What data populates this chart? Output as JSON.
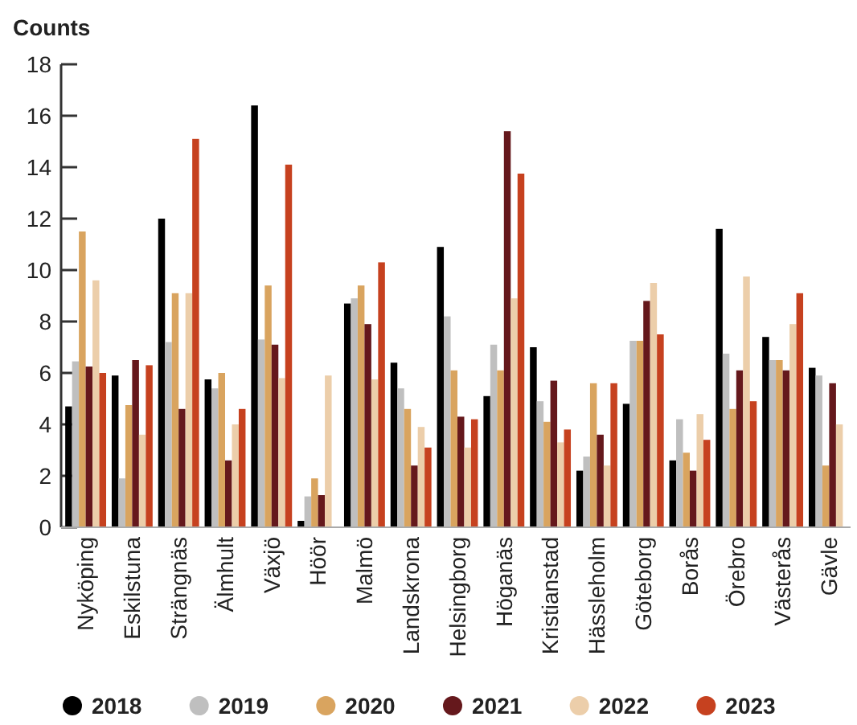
{
  "chart_data": {
    "type": "bar",
    "ylabel": "Counts",
    "categories": [
      "Nyköping",
      "Eskilstuna",
      "Strängnäs",
      "Älmhult",
      "Växjö",
      "Höör",
      "Malmö",
      "Landskrona",
      "Helsingborg",
      "Höganäs",
      "Kristianstad",
      "Hässleholm",
      "Göteborg",
      "Borås",
      "Örebro",
      "Västerås",
      "Gävle"
    ],
    "series": [
      {
        "name": "2018",
        "color": "#000000",
        "values": [
          4.7,
          5.9,
          12.0,
          5.75,
          16.4,
          0.25,
          8.7,
          6.4,
          10.9,
          5.1,
          7.0,
          2.2,
          4.8,
          2.6,
          11.6,
          7.4,
          6.2
        ]
      },
      {
        "name": "2019",
        "color": "#bfbfbf",
        "values": [
          6.45,
          1.9,
          7.2,
          5.4,
          7.3,
          1.2,
          8.9,
          5.4,
          8.2,
          7.1,
          4.9,
          2.75,
          7.25,
          4.2,
          6.75,
          6.5,
          5.9
        ]
      },
      {
        "name": "2020",
        "color": "#d9a45f",
        "values": [
          11.5,
          4.75,
          9.1,
          6.0,
          9.4,
          1.9,
          9.4,
          4.6,
          6.1,
          6.1,
          4.1,
          5.6,
          7.25,
          2.9,
          4.6,
          6.5,
          2.4
        ]
      },
      {
        "name": "2021",
        "color": "#65181c",
        "values": [
          6.25,
          6.5,
          4.6,
          2.6,
          7.1,
          1.25,
          7.9,
          2.4,
          4.3,
          15.4,
          5.7,
          3.6,
          8.8,
          2.2,
          6.1,
          6.1,
          5.6
        ]
      },
      {
        "name": "2022",
        "color": "#ecceaa",
        "values": [
          9.6,
          3.6,
          9.1,
          4.0,
          5.8,
          5.9,
          5.75,
          3.9,
          3.1,
          8.9,
          3.3,
          2.4,
          9.5,
          4.4,
          9.75,
          7.9,
          4.0
        ]
      },
      {
        "name": "2023",
        "color": "#c6411f",
        "values": [
          6.0,
          6.3,
          15.1,
          4.6,
          14.1,
          null,
          10.3,
          3.1,
          4.2,
          13.75,
          3.8,
          5.6,
          7.5,
          3.4,
          4.9,
          9.1,
          null
        ]
      }
    ],
    "ylim": [
      0,
      18
    ],
    "yticks": [
      0,
      2,
      4,
      6,
      8,
      10,
      12,
      14,
      16,
      18
    ],
    "legend": "bottom"
  }
}
